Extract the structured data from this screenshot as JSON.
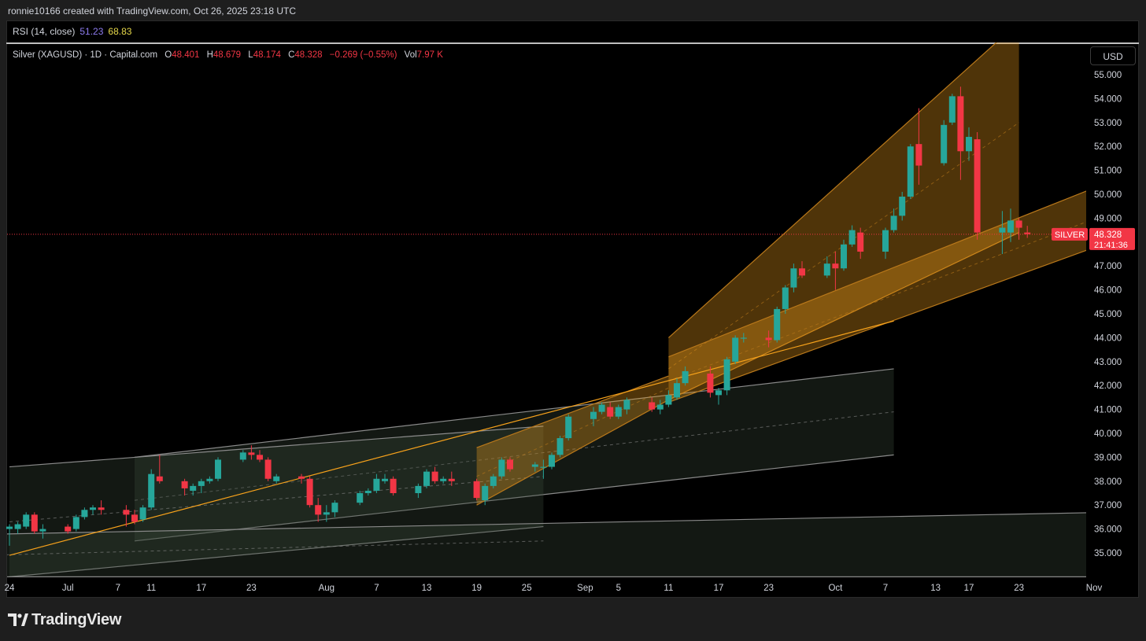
{
  "header": {
    "credit": "ronnie10166 created with TradingView.com, Oct 26, 2025 23:18 UTC"
  },
  "rsi": {
    "name": "RSI (14, close)",
    "value1": "51.23",
    "value2": "68.83"
  },
  "legend": {
    "symbol": "Silver (XAGUSD) · 1D · Capital.com",
    "o_label": "O",
    "o": "48.401",
    "h_label": "H",
    "h": "48.679",
    "l_label": "L",
    "l": "48.174",
    "c_label": "C",
    "c": "48.328",
    "change": "−0.269 (−0.55%)",
    "vol_label": "Vol",
    "vol": "7.97 K"
  },
  "currency_button": "USD",
  "price_tag": {
    "symbol": "SILVER",
    "price": "48.328",
    "countdown": "21:41:36"
  },
  "footer": {
    "brand": "TradingView"
  },
  "colors": {
    "up": "#26a69a",
    "down": "#f23645",
    "channel": "#f7a21b",
    "gray_channel": "#8a8a8a",
    "background": "#000000"
  },
  "chart_data": {
    "type": "candlestick",
    "y_ticks": [
      "55.000",
      "54.000",
      "53.000",
      "52.000",
      "51.000",
      "50.000",
      "49.000",
      "48.000",
      "47.000",
      "46.000",
      "45.000",
      "44.000",
      "43.000",
      "42.000",
      "41.000",
      "40.000",
      "39.000",
      "38.000",
      "37.000",
      "36.000",
      "35.000"
    ],
    "ylim": [
      34.0,
      55.6
    ],
    "x_ticks": [
      {
        "label": "24",
        "day": 0
      },
      {
        "label": "Jul",
        "day": 7
      },
      {
        "label": "7",
        "day": 13
      },
      {
        "label": "11",
        "day": 17
      },
      {
        "label": "17",
        "day": 23
      },
      {
        "label": "23",
        "day": 29
      },
      {
        "label": "Aug",
        "day": 38
      },
      {
        "label": "7",
        "day": 44
      },
      {
        "label": "13",
        "day": 50
      },
      {
        "label": "19",
        "day": 56
      },
      {
        "label": "25",
        "day": 62
      },
      {
        "label": "Sep",
        "day": 69
      },
      {
        "label": "5",
        "day": 73
      },
      {
        "label": "11",
        "day": 79
      },
      {
        "label": "17",
        "day": 85
      },
      {
        "label": "23",
        "day": 91
      },
      {
        "label": "Oct",
        "day": 99
      },
      {
        "label": "7",
        "day": 105
      },
      {
        "label": "13",
        "day": 111
      },
      {
        "label": "17",
        "day": 115
      },
      {
        "label": "23",
        "day": 121
      },
      {
        "label": "Nov",
        "day": 130
      }
    ],
    "candles": [
      {
        "d": 0,
        "o": 36.0,
        "h": 36.2,
        "l": 35.3,
        "c": 36.1
      },
      {
        "d": 1,
        "o": 36.0,
        "h": 36.3,
        "l": 35.8,
        "c": 36.2
      },
      {
        "d": 2,
        "o": 36.1,
        "h": 36.7,
        "l": 36.0,
        "c": 36.6
      },
      {
        "d": 3,
        "o": 36.6,
        "h": 36.7,
        "l": 35.8,
        "c": 35.9
      },
      {
        "d": 4,
        "o": 35.9,
        "h": 36.2,
        "l": 35.6,
        "c": 36.0
      },
      {
        "d": 7,
        "o": 36.1,
        "h": 36.2,
        "l": 35.8,
        "c": 35.9
      },
      {
        "d": 8,
        "o": 36.0,
        "h": 36.6,
        "l": 35.9,
        "c": 36.5
      },
      {
        "d": 9,
        "o": 36.5,
        "h": 36.9,
        "l": 36.4,
        "c": 36.8
      },
      {
        "d": 10,
        "o": 36.8,
        "h": 37.0,
        "l": 36.6,
        "c": 36.9
      },
      {
        "d": 11,
        "o": 36.9,
        "h": 37.2,
        "l": 36.6,
        "c": 36.8
      },
      {
        "d": 14,
        "o": 36.8,
        "h": 37.0,
        "l": 36.1,
        "c": 36.6
      },
      {
        "d": 15,
        "o": 36.6,
        "h": 36.8,
        "l": 36.2,
        "c": 36.3
      },
      {
        "d": 16,
        "o": 36.4,
        "h": 37.0,
        "l": 36.3,
        "c": 36.9
      },
      {
        "d": 17,
        "o": 36.9,
        "h": 38.5,
        "l": 36.8,
        "c": 38.3
      },
      {
        "d": 18,
        "o": 38.2,
        "h": 39.1,
        "l": 37.9,
        "c": 38.0
      },
      {
        "d": 21,
        "o": 38.0,
        "h": 38.1,
        "l": 37.4,
        "c": 37.7
      },
      {
        "d": 22,
        "o": 37.6,
        "h": 37.9,
        "l": 37.4,
        "c": 37.8
      },
      {
        "d": 23,
        "o": 37.8,
        "h": 38.1,
        "l": 37.5,
        "c": 38.0
      },
      {
        "d": 24,
        "o": 38.0,
        "h": 38.2,
        "l": 37.9,
        "c": 38.1
      },
      {
        "d": 25,
        "o": 38.1,
        "h": 39.0,
        "l": 38.0,
        "c": 38.9
      },
      {
        "d": 28,
        "o": 38.9,
        "h": 39.3,
        "l": 38.8,
        "c": 39.2
      },
      {
        "d": 29,
        "o": 39.2,
        "h": 39.5,
        "l": 38.9,
        "c": 39.1
      },
      {
        "d": 30,
        "o": 39.1,
        "h": 39.3,
        "l": 38.8,
        "c": 38.9
      },
      {
        "d": 31,
        "o": 38.9,
        "h": 39.0,
        "l": 38.0,
        "c": 38.1
      },
      {
        "d": 32,
        "o": 38.0,
        "h": 38.3,
        "l": 37.9,
        "c": 38.2
      },
      {
        "d": 35,
        "o": 38.2,
        "h": 38.3,
        "l": 37.9,
        "c": 38.1
      },
      {
        "d": 36,
        "o": 38.1,
        "h": 38.2,
        "l": 36.9,
        "c": 37.0
      },
      {
        "d": 37,
        "o": 37.0,
        "h": 37.3,
        "l": 36.3,
        "c": 36.6
      },
      {
        "d": 38,
        "o": 36.6,
        "h": 37.0,
        "l": 36.3,
        "c": 36.7
      },
      {
        "d": 39,
        "o": 36.7,
        "h": 37.2,
        "l": 36.5,
        "c": 37.1
      },
      {
        "d": 42,
        "o": 37.1,
        "h": 37.6,
        "l": 37.0,
        "c": 37.5
      },
      {
        "d": 43,
        "o": 37.5,
        "h": 37.7,
        "l": 37.4,
        "c": 37.6
      },
      {
        "d": 44,
        "o": 37.6,
        "h": 38.3,
        "l": 37.5,
        "c": 38.1
      },
      {
        "d": 45,
        "o": 38.0,
        "h": 38.3,
        "l": 37.9,
        "c": 38.1
      },
      {
        "d": 46,
        "o": 38.1,
        "h": 38.2,
        "l": 37.4,
        "c": 37.5
      },
      {
        "d": 49,
        "o": 37.5,
        "h": 37.9,
        "l": 37.3,
        "c": 37.8
      },
      {
        "d": 50,
        "o": 37.8,
        "h": 38.5,
        "l": 37.7,
        "c": 38.4
      },
      {
        "d": 51,
        "o": 38.4,
        "h": 38.6,
        "l": 37.9,
        "c": 38.0
      },
      {
        "d": 52,
        "o": 38.0,
        "h": 38.2,
        "l": 37.9,
        "c": 38.1
      },
      {
        "d": 53,
        "o": 38.1,
        "h": 38.4,
        "l": 37.8,
        "c": 38.0
      },
      {
        "d": 56,
        "o": 38.0,
        "h": 38.1,
        "l": 37.2,
        "c": 37.3
      },
      {
        "d": 57,
        "o": 37.2,
        "h": 37.9,
        "l": 37.0,
        "c": 37.8
      },
      {
        "d": 58,
        "o": 37.8,
        "h": 38.3,
        "l": 37.7,
        "c": 38.2
      },
      {
        "d": 59,
        "o": 38.2,
        "h": 39.0,
        "l": 38.1,
        "c": 38.9
      },
      {
        "d": 60,
        "o": 38.9,
        "h": 39.0,
        "l": 38.4,
        "c": 38.5
      },
      {
        "d": 63,
        "o": 38.6,
        "h": 38.8,
        "l": 38.4,
        "c": 38.7
      },
      {
        "d": 64,
        "o": 38.6,
        "h": 38.9,
        "l": 38.1,
        "c": 38.6
      },
      {
        "d": 65,
        "o": 38.6,
        "h": 39.2,
        "l": 38.5,
        "c": 39.1
      },
      {
        "d": 66,
        "o": 39.1,
        "h": 39.9,
        "l": 39.0,
        "c": 39.8
      },
      {
        "d": 67,
        "o": 39.8,
        "h": 40.8,
        "l": 39.7,
        "c": 40.7
      },
      {
        "d": 70,
        "o": 40.6,
        "h": 41.1,
        "l": 40.3,
        "c": 40.9
      },
      {
        "d": 71,
        "o": 40.9,
        "h": 41.3,
        "l": 40.8,
        "c": 41.2
      },
      {
        "d": 72,
        "o": 41.1,
        "h": 41.3,
        "l": 40.6,
        "c": 40.7
      },
      {
        "d": 73,
        "o": 40.7,
        "h": 41.2,
        "l": 40.6,
        "c": 41.1
      },
      {
        "d": 74,
        "o": 41.0,
        "h": 41.5,
        "l": 40.8,
        "c": 41.4
      },
      {
        "d": 77,
        "o": 41.3,
        "h": 41.5,
        "l": 40.9,
        "c": 41.0
      },
      {
        "d": 78,
        "o": 41.0,
        "h": 41.4,
        "l": 40.8,
        "c": 41.2
      },
      {
        "d": 79,
        "o": 41.2,
        "h": 41.8,
        "l": 41.1,
        "c": 41.6
      },
      {
        "d": 80,
        "o": 41.5,
        "h": 42.3,
        "l": 41.4,
        "c": 42.1
      },
      {
        "d": 81,
        "o": 42.1,
        "h": 42.8,
        "l": 42.0,
        "c": 42.6
      },
      {
        "d": 84,
        "o": 42.5,
        "h": 42.8,
        "l": 41.5,
        "c": 41.7
      },
      {
        "d": 85,
        "o": 41.6,
        "h": 41.9,
        "l": 41.2,
        "c": 41.8
      },
      {
        "d": 86,
        "o": 41.8,
        "h": 43.2,
        "l": 41.6,
        "c": 43.1
      },
      {
        "d": 87,
        "o": 43.0,
        "h": 44.1,
        "l": 42.9,
        "c": 44.0
      },
      {
        "d": 88,
        "o": 44.0,
        "h": 44.2,
        "l": 43.8,
        "c": 44.0
      },
      {
        "d": 91,
        "o": 44.0,
        "h": 44.3,
        "l": 43.6,
        "c": 43.9
      },
      {
        "d": 92,
        "o": 43.9,
        "h": 45.3,
        "l": 43.8,
        "c": 45.2
      },
      {
        "d": 93,
        "o": 45.2,
        "h": 46.2,
        "l": 45.0,
        "c": 46.1
      },
      {
        "d": 94,
        "o": 46.1,
        "h": 47.1,
        "l": 45.9,
        "c": 46.9
      },
      {
        "d": 95,
        "o": 46.9,
        "h": 47.2,
        "l": 46.5,
        "c": 46.6
      },
      {
        "d": 98,
        "o": 46.6,
        "h": 47.4,
        "l": 46.5,
        "c": 47.1
      },
      {
        "d": 99,
        "o": 47.1,
        "h": 47.6,
        "l": 46.0,
        "c": 46.9
      },
      {
        "d": 100,
        "o": 46.9,
        "h": 48.1,
        "l": 46.8,
        "c": 47.9
      },
      {
        "d": 101,
        "o": 47.9,
        "h": 48.7,
        "l": 47.8,
        "c": 48.5
      },
      {
        "d": 102,
        "o": 48.4,
        "h": 48.6,
        "l": 47.3,
        "c": 47.6
      },
      {
        "d": 105,
        "o": 47.6,
        "h": 48.6,
        "l": 47.3,
        "c": 48.5
      },
      {
        "d": 106,
        "o": 48.5,
        "h": 49.4,
        "l": 48.4,
        "c": 49.1
      },
      {
        "d": 107,
        "o": 49.1,
        "h": 50.1,
        "l": 48.9,
        "c": 49.9
      },
      {
        "d": 108,
        "o": 49.9,
        "h": 52.1,
        "l": 49.8,
        "c": 52.0
      },
      {
        "d": 109,
        "o": 52.1,
        "h": 53.6,
        "l": 50.4,
        "c": 51.2
      },
      {
        "d": 112,
        "o": 51.3,
        "h": 53.1,
        "l": 51.2,
        "c": 52.9
      },
      {
        "d": 113,
        "o": 53.0,
        "h": 54.2,
        "l": 52.9,
        "c": 54.1
      },
      {
        "d": 114,
        "o": 54.1,
        "h": 54.5,
        "l": 50.6,
        "c": 51.8
      },
      {
        "d": 115,
        "o": 51.8,
        "h": 52.8,
        "l": 51.4,
        "c": 52.4
      },
      {
        "d": 116,
        "o": 52.3,
        "h": 52.6,
        "l": 48.1,
        "c": 48.4
      },
      {
        "d": 119,
        "o": 48.4,
        "h": 49.3,
        "l": 47.5,
        "c": 48.6
      },
      {
        "d": 120,
        "o": 48.4,
        "h": 49.4,
        "l": 48.0,
        "c": 48.9
      },
      {
        "d": 121,
        "o": 48.9,
        "h": 49.0,
        "l": 48.1,
        "c": 48.6
      },
      {
        "d": 122,
        "o": 48.401,
        "h": 48.679,
        "l": 48.174,
        "c": 48.328
      }
    ],
    "last_price": 48.328,
    "drawings": {
      "orange_channels": [
        {
          "upper": [
            [
              56,
              39.4
            ],
            [
              79,
              42.4
            ]
          ],
          "lower": [
            [
              56,
              37.0
            ],
            [
              79,
              41.4
            ]
          ],
          "mid": [
            [
              56,
              38.2
            ],
            [
              79,
              41.9
            ]
          ]
        },
        {
          "upper": [
            [
              79,
              44.0
            ],
            [
              121,
              57.2
            ]
          ],
          "lower": [
            [
              79,
              41.4
            ],
            [
              121,
              48.4
            ]
          ],
          "mid": [
            [
              79,
              42.7
            ],
            [
              121,
              53.0
            ]
          ]
        },
        {
          "upper": [
            [
              79,
              43.2
            ],
            [
              131,
              50.4
            ]
          ],
          "lower": [
            [
              79,
              41.3
            ],
            [
              131,
              47.9
            ]
          ],
          "mid": [
            [
              79,
              42.2
            ],
            [
              131,
              49.1
            ]
          ]
        }
      ],
      "orange_trendline": [
        [
          0,
          34.9
        ],
        [
          106,
          44.7
        ]
      ],
      "gray_channels": [
        {
          "upper": [
            [
              15,
              39.0
            ],
            [
              106,
              42.7
            ]
          ],
          "lower": [
            [
              15,
              35.5
            ],
            [
              106,
              39.1
            ]
          ],
          "mid": [
            [
              15,
              37.2
            ],
            [
              106,
              40.9
            ]
          ]
        },
        {
          "upper": [
            [
              0,
              38.6
            ],
            [
              64,
              40.3
            ]
          ],
          "lower": [
            [
              0,
              34.0
            ],
            [
              64,
              36.1
            ]
          ],
          "mid": [
            [
              0,
              36.3
            ],
            [
              64,
              38.2
            ]
          ]
        },
        {
          "upper": [
            [
              -14,
              35.7
            ],
            [
              132,
              36.7
            ]
          ],
          "lower": [
            [
              -14,
              34.0
            ],
            [
              132,
              34.0
            ]
          ],
          "mid": [
            [
              -14,
              34.8
            ],
            [
              64,
              35.5
            ]
          ]
        }
      ]
    }
  }
}
